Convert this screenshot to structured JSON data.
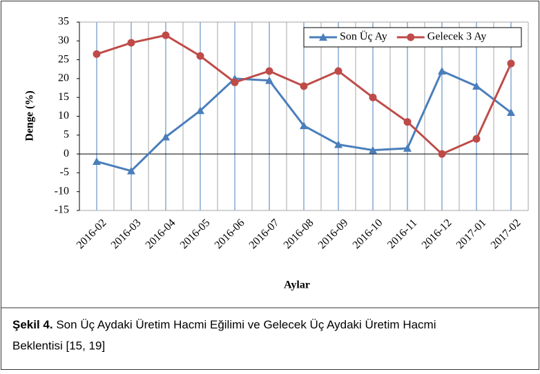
{
  "chart_data": {
    "type": "line",
    "x_label": "Aylar",
    "y_label": "Denge (%)",
    "categories": [
      "2016-02",
      "2016-03",
      "2016-04",
      "2016-05",
      "2016-06",
      "2016-07",
      "2016-08",
      "2016-09",
      "2016-10",
      "2016-11",
      "2016-12",
      "2017-01",
      "2017-02"
    ],
    "series": [
      {
        "name": "Son Üç Ay",
        "color": "#4a7ebb",
        "marker": "triangle",
        "values": [
          -2,
          -4.5,
          4.5,
          11.5,
          20,
          19.5,
          7.5,
          2.5,
          1,
          1.5,
          22,
          18,
          11
        ]
      },
      {
        "name": "Gelecek 3 Ay",
        "color": "#be4b48",
        "marker": "circle",
        "values": [
          26.5,
          29.5,
          31.5,
          26,
          19,
          22,
          18,
          22,
          15,
          8.5,
          0,
          4,
          24
        ]
      }
    ],
    "ylim": [
      -15,
      35
    ],
    "yticks": [
      -15,
      -10,
      -5,
      0,
      5,
      10,
      15,
      20,
      25,
      30,
      35
    ],
    "legend": "top-right"
  },
  "caption": {
    "label": "Şekil 4.",
    "text": "Son Üç Aydaki Üretim Hacmi Eğilimi ve Gelecek Üç Aydaki Üretim Hacmi",
    "text2": "Beklentisi [15, 19]"
  }
}
